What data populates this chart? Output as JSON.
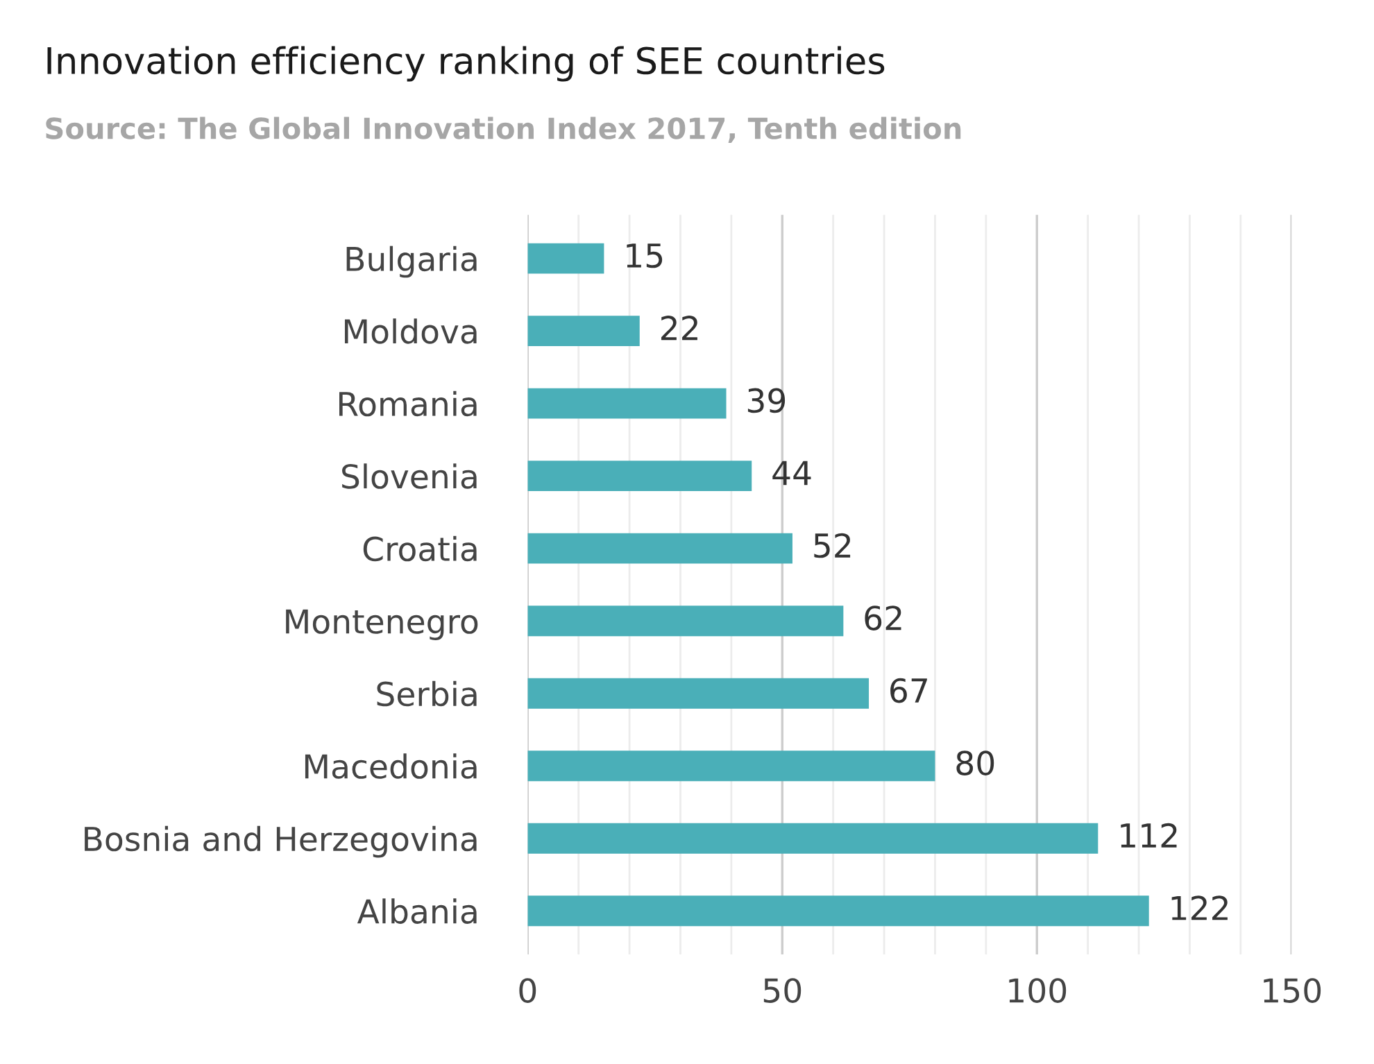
{
  "chart_data": {
    "type": "bar",
    "orientation": "horizontal",
    "title": "Innovation efficiency ranking of SEE countries",
    "subtitle": "Source: The Global Innovation Index 2017, Tenth edition",
    "categories": [
      "Bulgaria",
      "Moldova",
      "Romania",
      "Slovenia",
      "Croatia",
      "Montenegro",
      "Serbia",
      "Macedonia",
      "Bosnia and Herzegovina",
      "Albania"
    ],
    "values": [
      15,
      22,
      39,
      44,
      52,
      62,
      67,
      80,
      112,
      122
    ],
    "color": "#4aafb8",
    "data_labels": true,
    "grid": "x",
    "legend": false,
    "xlim": [
      0,
      150
    ],
    "xticks": [
      0,
      {
        "value": 10,
        "label": null
      },
      {
        "value": 20,
        "label": null
      },
      {
        "value": 30,
        "label": null
      },
      {
        "value": 40,
        "label": null
      },
      50,
      {
        "value": 60,
        "label": null
      },
      {
        "value": 70,
        "label": null
      },
      {
        "value": 80,
        "label": null
      },
      {
        "value": 90,
        "label": null
      },
      100,
      {
        "value": 110,
        "label": null
      },
      {
        "value": 120,
        "label": null
      },
      {
        "value": 130,
        "label": null
      },
      {
        "value": 140,
        "label": null
      },
      150
    ]
  }
}
